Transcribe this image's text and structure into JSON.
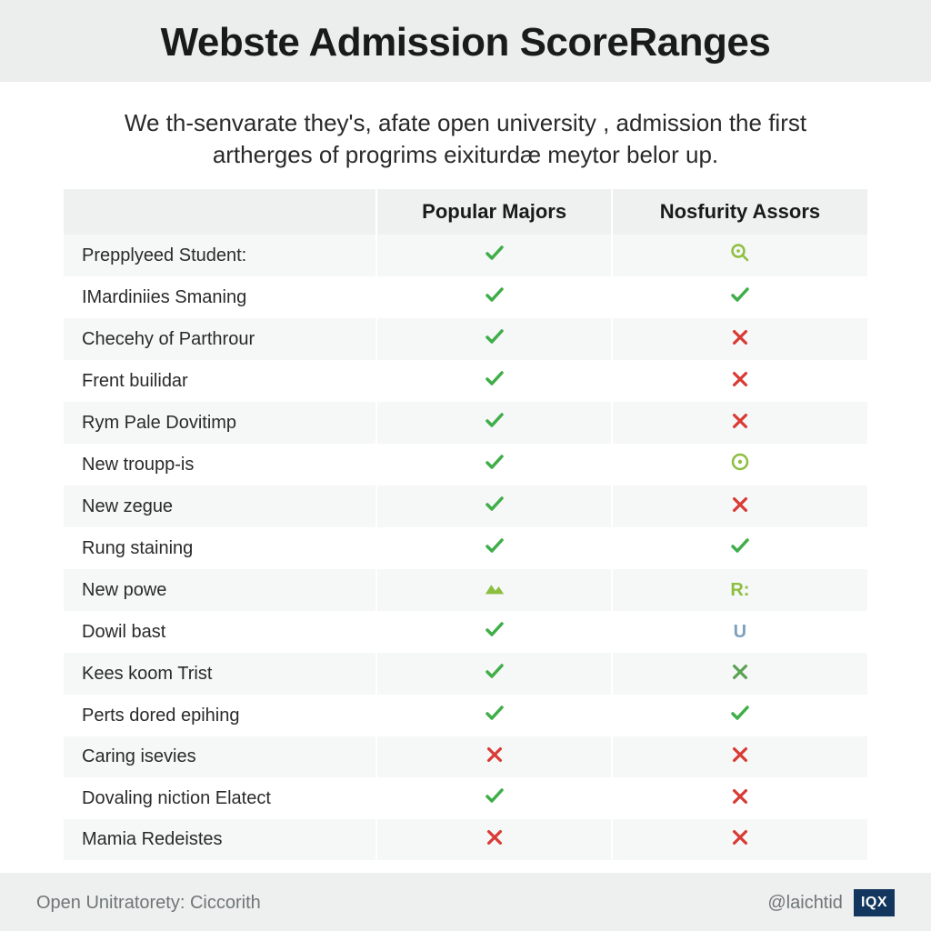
{
  "header": {
    "title": "Webste Admission ScoreRanges"
  },
  "subtitle": {
    "line1": "We th-senvarate they's, afate open university , admission the first",
    "line2": "artherges of progrims eixiturdæ meytor belor up."
  },
  "table": {
    "columns": [
      "",
      "Popular Majors",
      "Nosfurity Assors"
    ],
    "marks": {
      "check": {
        "type": "check",
        "color": "#3fae49",
        "stroke_width": 3.5
      },
      "cross": {
        "type": "cross",
        "color": "#d93a34",
        "stroke_width": 3.5
      },
      "magnify": {
        "type": "magnify",
        "color": "#8cbf3f",
        "stroke_width": 2.5
      },
      "dot": {
        "type": "dot",
        "color": "#8cbf3f",
        "stroke_width": 2.5
      },
      "hill": {
        "type": "hill",
        "color": "#8cbf3f"
      },
      "r": {
        "type": "glyph",
        "text": "R:",
        "color": "#8cbf3f"
      },
      "u": {
        "type": "glyph",
        "text": "U",
        "color": "#7f9fbf"
      },
      "xg": {
        "type": "cross",
        "color": "#5aa352",
        "stroke_width": 3.5
      }
    },
    "rows": [
      {
        "label": "Prepplyeed Student:",
        "c1": "check",
        "c2": "magnify"
      },
      {
        "label": "IMardiniies Smaning",
        "c1": "check",
        "c2": "check"
      },
      {
        "label": "Checehy of Parthrour",
        "c1": "check",
        "c2": "cross"
      },
      {
        "label": "Frent builidar",
        "c1": "check",
        "c2": "cross"
      },
      {
        "label": "Rym Pale Dovitimp",
        "c1": "check",
        "c2": "cross"
      },
      {
        "label": "New troupp-is",
        "c1": "check",
        "c2": "dot"
      },
      {
        "label": "New zegue",
        "c1": "check",
        "c2": "cross"
      },
      {
        "label": "Rung staining",
        "c1": "check",
        "c2": "check"
      },
      {
        "label": "New powe",
        "c1": "hill",
        "c2": "r"
      },
      {
        "label": "Dowil bast",
        "c1": "check",
        "c2": "u"
      },
      {
        "label": "Kees koom Trist",
        "c1": "check",
        "c2": "xg"
      },
      {
        "label": "Perts dored epihing",
        "c1": "check",
        "c2": "check"
      },
      {
        "label": "Caring isevies",
        "c1": "cross",
        "c2": "cross"
      },
      {
        "label": "Dovaling niction Elatect",
        "c1": "check",
        "c2": "cross"
      },
      {
        "label": "Mamia Redeistes",
        "c1": "cross",
        "c2": "cross"
      }
    ],
    "header_bg": "#eff1f1",
    "row_stripe_bg": "#f6f7f7",
    "row_bg": "#ffffff",
    "label_fontsize": 20,
    "header_fontsize": 22
  },
  "footer": {
    "left": "Open Unitratorety: Ciccorith",
    "right_handle": "@laichtid",
    "logo_text": "IQX",
    "logo_bg": "#12365e",
    "logo_fg": "#ffffff"
  },
  "colors": {
    "page_bg": "#ffffff",
    "title_bg": "#eceeee",
    "footer_bg": "#eef0f0",
    "text": "#1a1a1a",
    "muted": "#6f7575"
  }
}
